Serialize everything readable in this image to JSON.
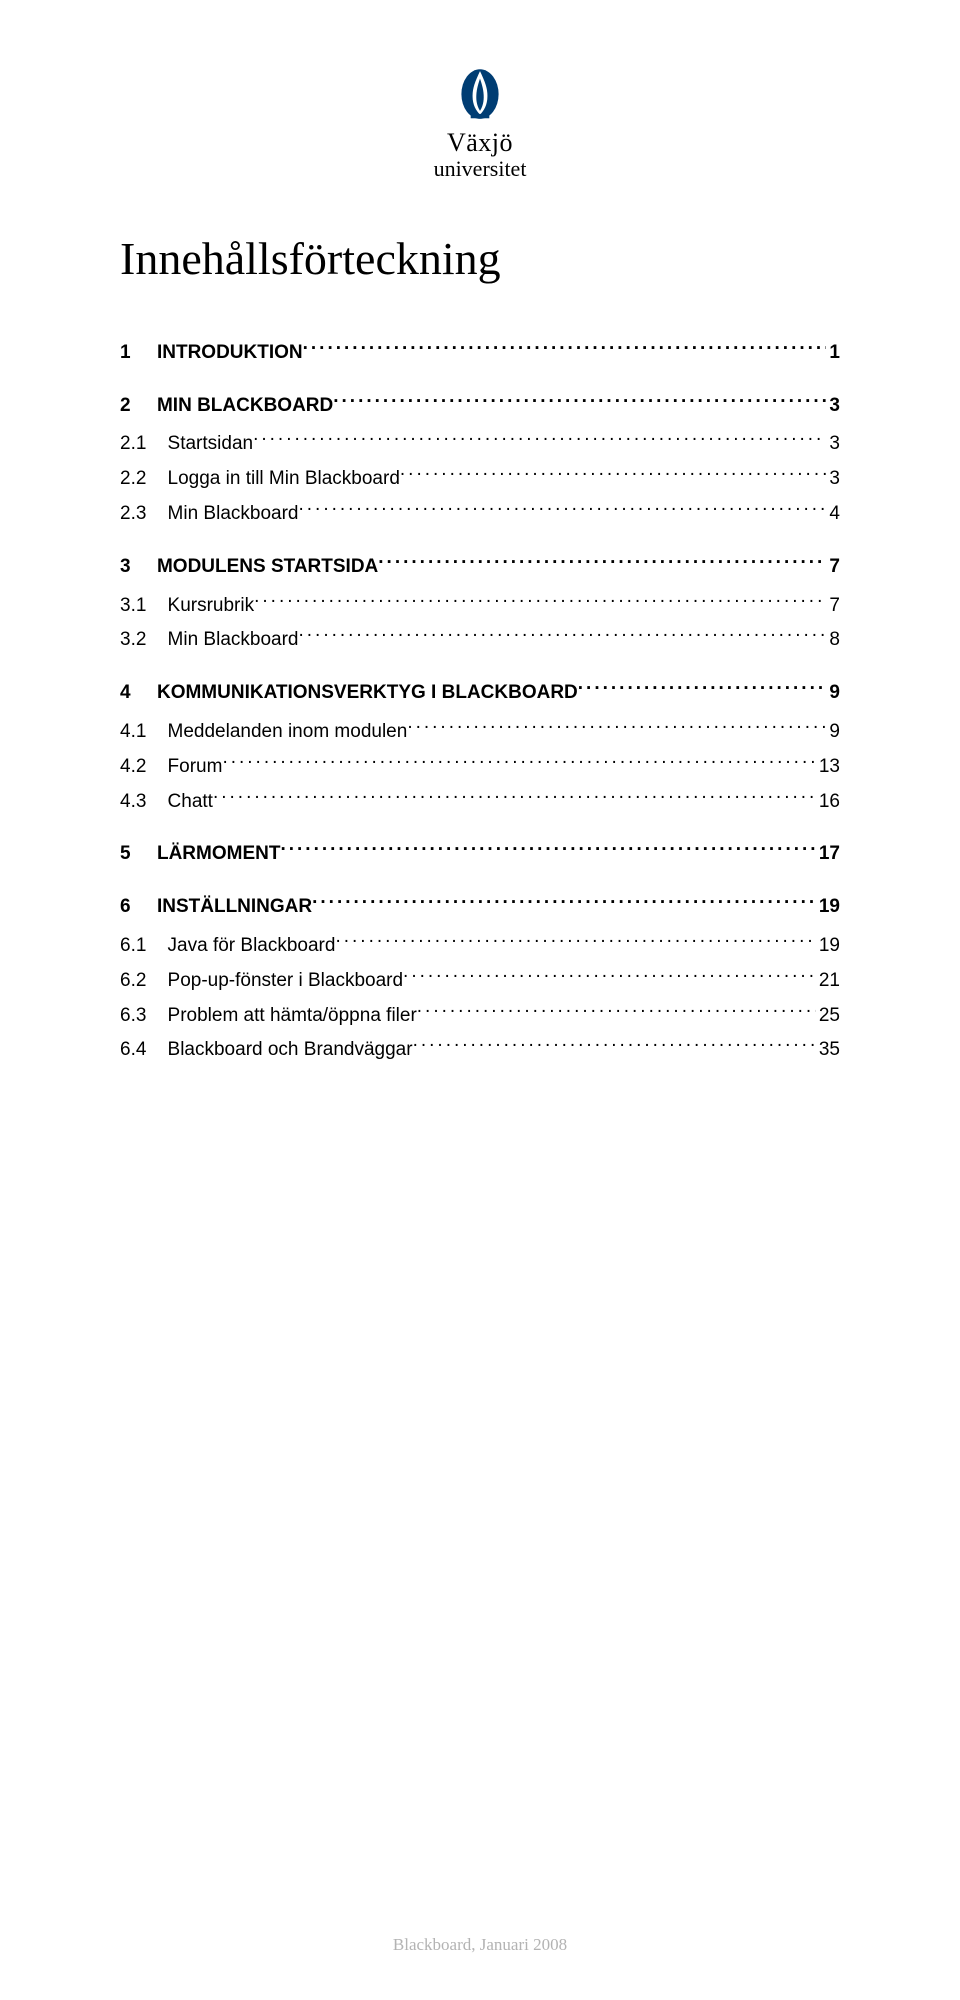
{
  "logo": {
    "line1": "Växjö",
    "line2": "universitet",
    "primary_color": "#003d73"
  },
  "title": "Innehållsförteckning",
  "toc": {
    "sections": [
      {
        "number": "1",
        "label": "INTRODUKTION",
        "page": "1",
        "subs": []
      },
      {
        "number": "2",
        "label": "MIN BLACKBOARD",
        "page": "3",
        "subs": [
          {
            "number": "2.1",
            "label": "Startsidan",
            "page": "3"
          },
          {
            "number": "2.2",
            "label": "Logga in till Min Blackboard",
            "page": "3"
          },
          {
            "number": "2.3",
            "label": "Min Blackboard",
            "page": "4"
          }
        ]
      },
      {
        "number": "3",
        "label": "MODULENS STARTSIDA",
        "page": "7",
        "subs": [
          {
            "number": "3.1",
            "label": "Kursrubrik",
            "page": "7"
          },
          {
            "number": "3.2",
            "label": "Min Blackboard",
            "page": "8"
          }
        ]
      },
      {
        "number": "4",
        "label": "KOMMUNIKATIONSVERKTYG I BLACKBOARD",
        "page": "9",
        "subs": [
          {
            "number": "4.1",
            "label": "Meddelanden inom modulen",
            "page": "9"
          },
          {
            "number": "4.2",
            "label": "Forum",
            "page": "13"
          },
          {
            "number": "4.3",
            "label": "Chatt",
            "page": "16"
          }
        ]
      },
      {
        "number": "5",
        "label": "LÄRMOMENT",
        "page": "17",
        "subs": []
      },
      {
        "number": "6",
        "label": "INSTÄLLNINGAR",
        "page": "19",
        "subs": [
          {
            "number": "6.1",
            "label": "Java för Blackboard",
            "page": "19"
          },
          {
            "number": "6.2",
            "label": "Pop-up-fönster i Blackboard",
            "page": "21"
          },
          {
            "number": "6.3",
            "label": "Problem att hämta/öppna filer",
            "page": "25"
          },
          {
            "number": "6.4",
            "label": "Blackboard och Brandväggar",
            "page": "35"
          }
        ]
      }
    ],
    "section_num_width_ch": 6,
    "sub_num_width_ch": 7
  },
  "footer": "Blackboard, Januari 2008"
}
